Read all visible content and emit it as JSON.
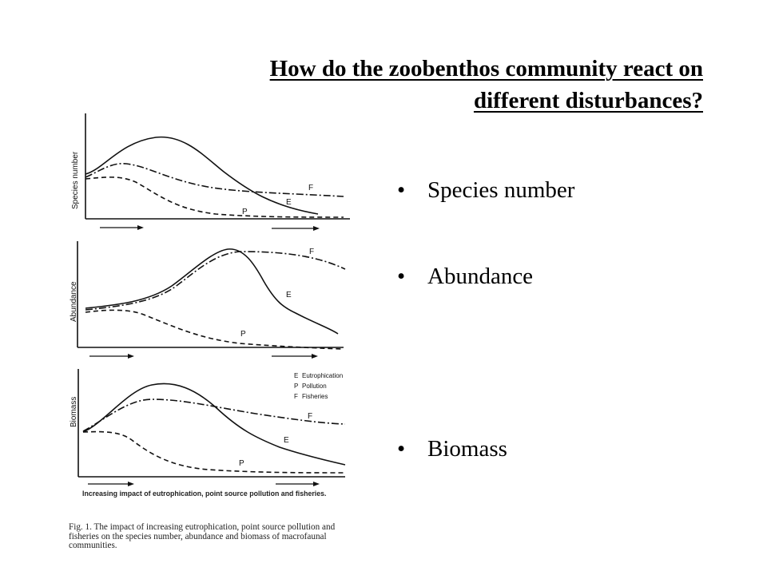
{
  "title": {
    "line1": "How do the zoobenthos community react on",
    "line2": "different disturbances?"
  },
  "bullets": [
    "Species number",
    "Abundance",
    "Biomass"
  ],
  "figure": {
    "panels": [
      {
        "ylabel": "Species number",
        "labels": {
          "F": "F",
          "E": "E",
          "P": "P"
        }
      },
      {
        "ylabel": "Abundance",
        "labels": {
          "F": "F",
          "E": "E",
          "P": "P"
        }
      },
      {
        "ylabel": "Biomass",
        "labels": {
          "F": "F",
          "E": "E",
          "P": "P"
        }
      }
    ],
    "legend": [
      {
        "key": "E",
        "text": "Eutrophication"
      },
      {
        "key": "P",
        "text": "Pollution"
      },
      {
        "key": "F",
        "text": "Fisheries"
      }
    ],
    "axis_caption": "Increasing impact of eutrophication, point source pollution and fisheries.",
    "caption": "Fig. 1. The impact of increasing eutrophication, point source pollution and fisheries on the species number, abundance and biomass of macrofaunal communities."
  }
}
